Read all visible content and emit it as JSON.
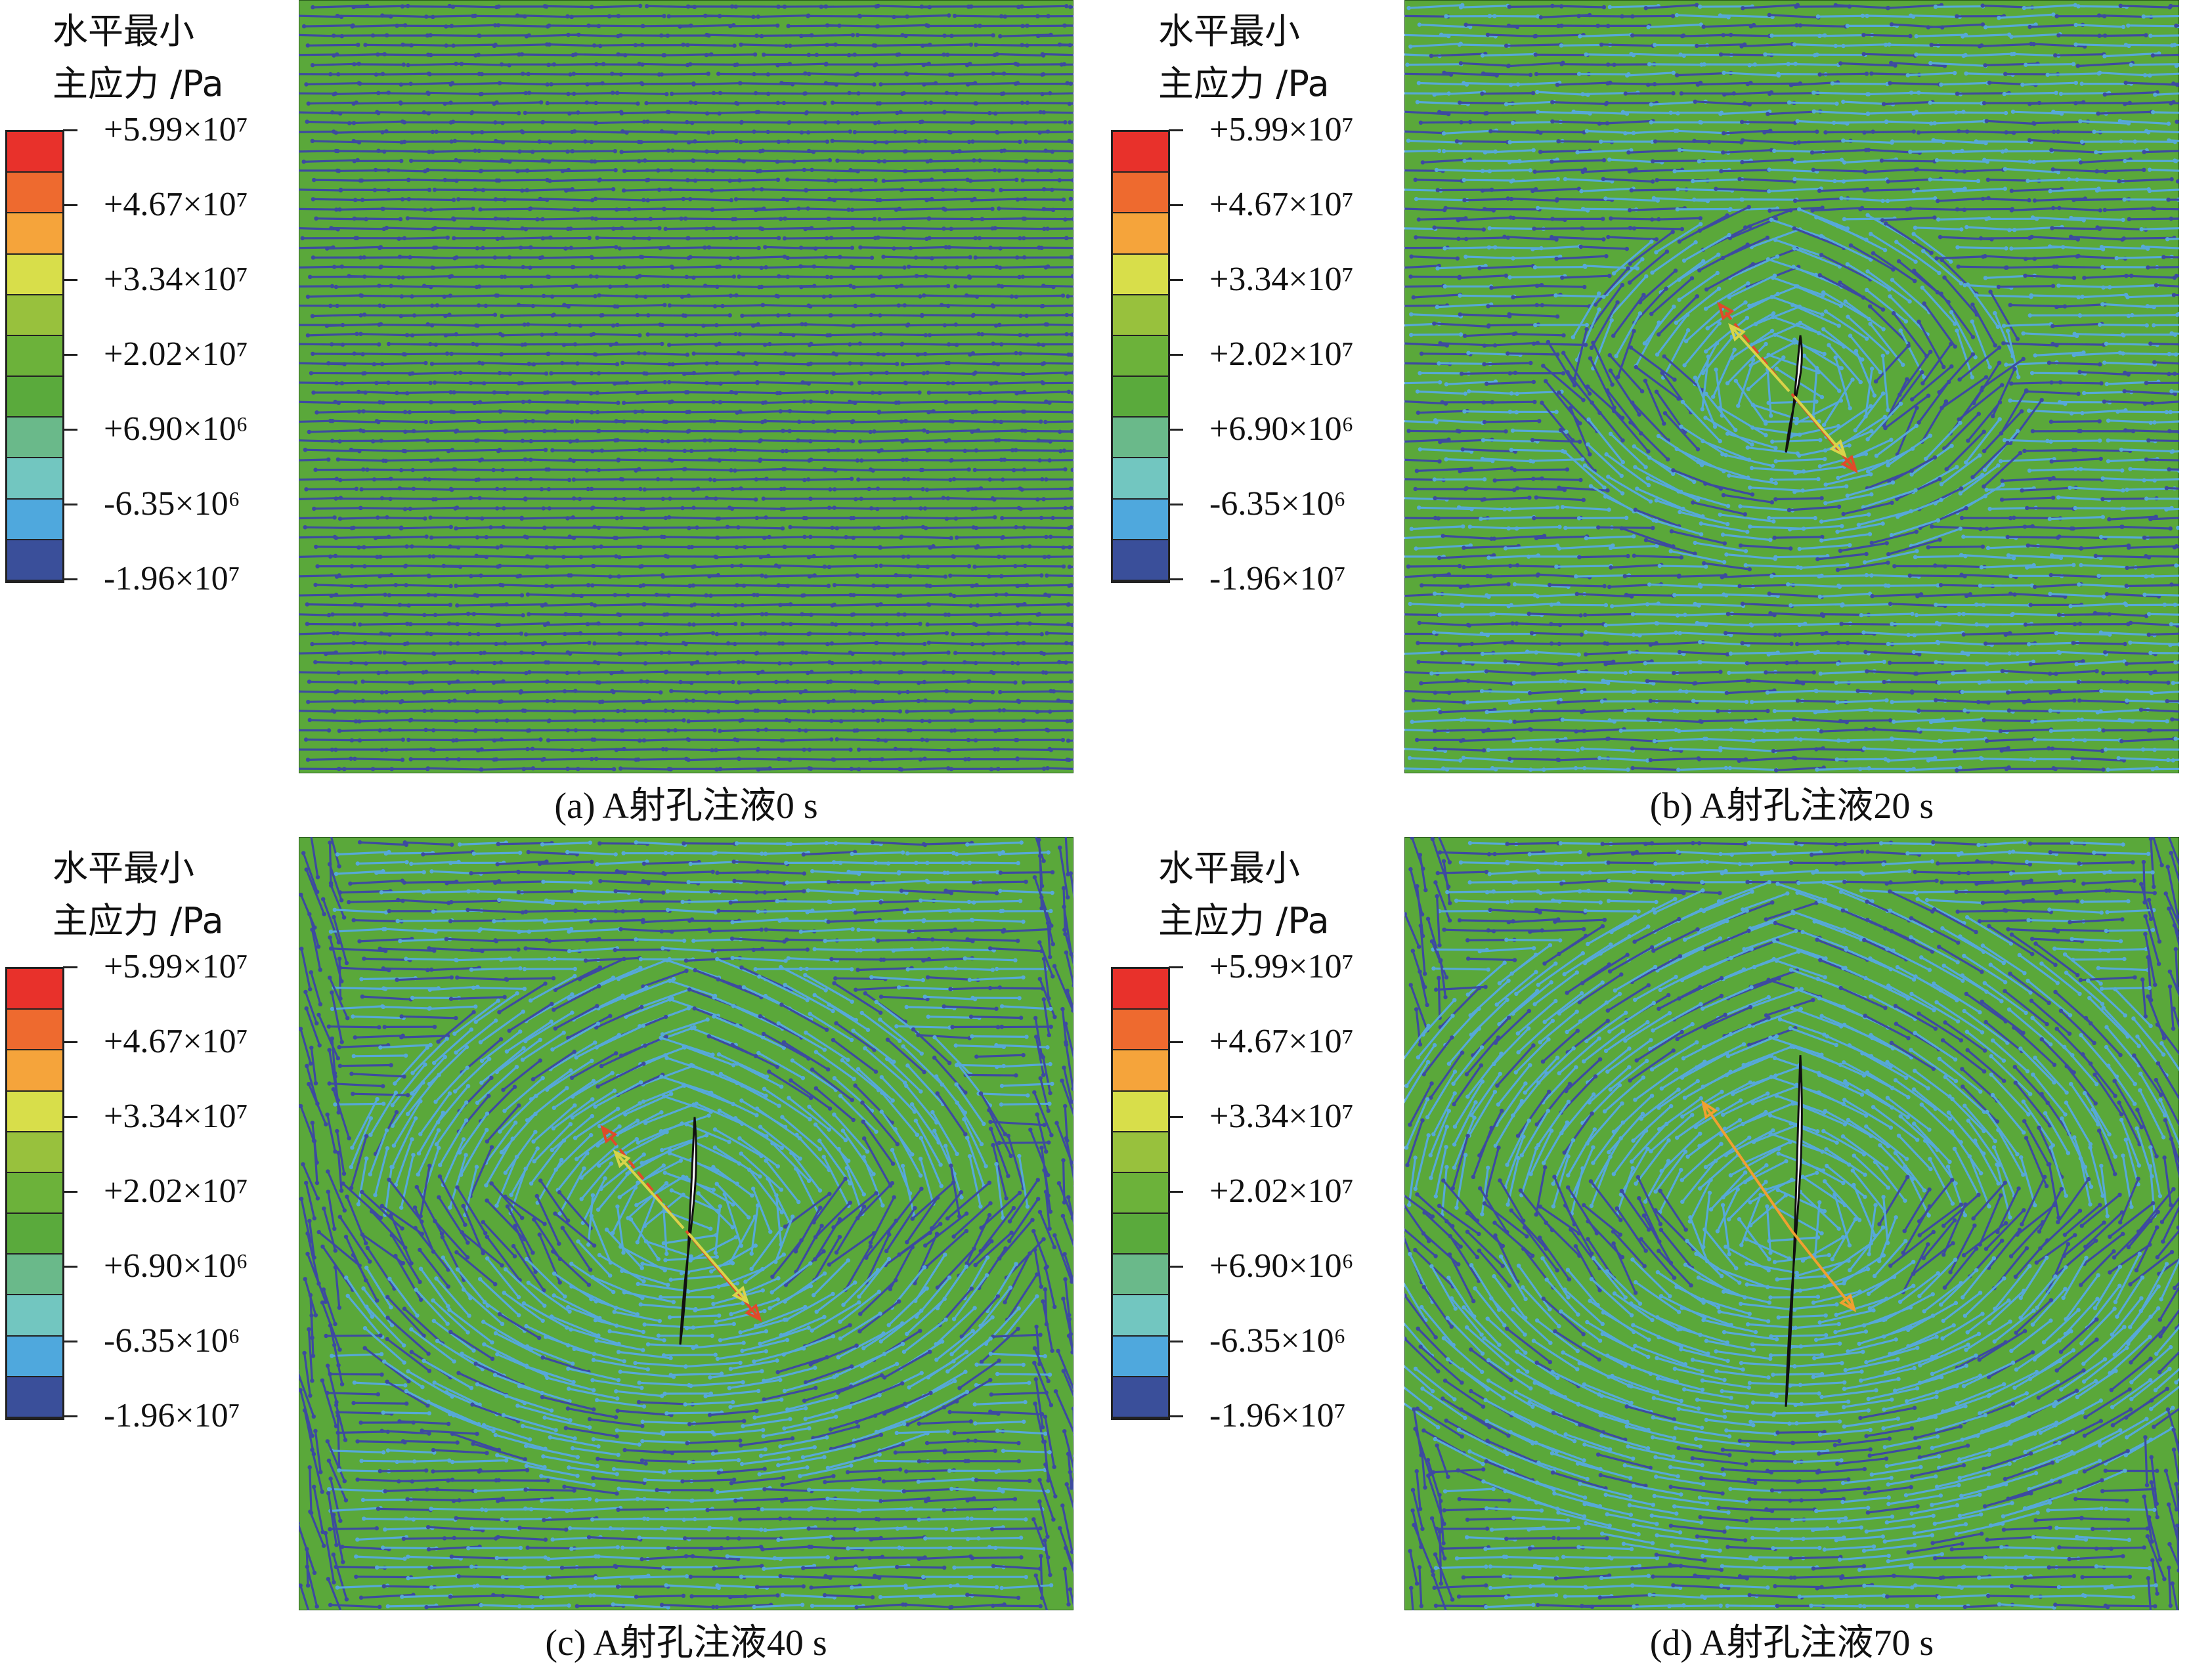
{
  "legend": {
    "title": "水平最小\n主应力 /Pa",
    "ticks": [
      "+5.99×10⁷",
      "+4.67×10⁷",
      "+3.34×10⁷",
      "+2.02×10⁷",
      "+6.90×10⁶",
      "-6.35×10⁶",
      "-1.96×10⁷"
    ],
    "colors": [
      "#e8312b",
      "#ee6a2f",
      "#f5a43b",
      "#d8de4a",
      "#98c13d",
      "#6cb23a",
      "#5aaa3c",
      "#6ab98a",
      "#72c6c0",
      "#4fa8dd",
      "#3a4f9a"
    ]
  },
  "panels": [
    {
      "caption": "(a) A射孔注液0 s",
      "stage": 0
    },
    {
      "caption": "(b) A射孔注液20 s",
      "stage": 1
    },
    {
      "caption": "(c) A射孔注液40 s",
      "stage": 2
    },
    {
      "caption": "(d) A射孔注液70 s",
      "stage": 3
    }
  ],
  "colors": {
    "background": "#5aa83a",
    "stress_dark": "#3d4aa0",
    "stress_light": "#57a9d8",
    "fracture": "#ffffff",
    "arrow_red": "#e04a2a",
    "arrow_orange": "#f0a030",
    "arrow_yellow": "#d8d44a"
  }
}
